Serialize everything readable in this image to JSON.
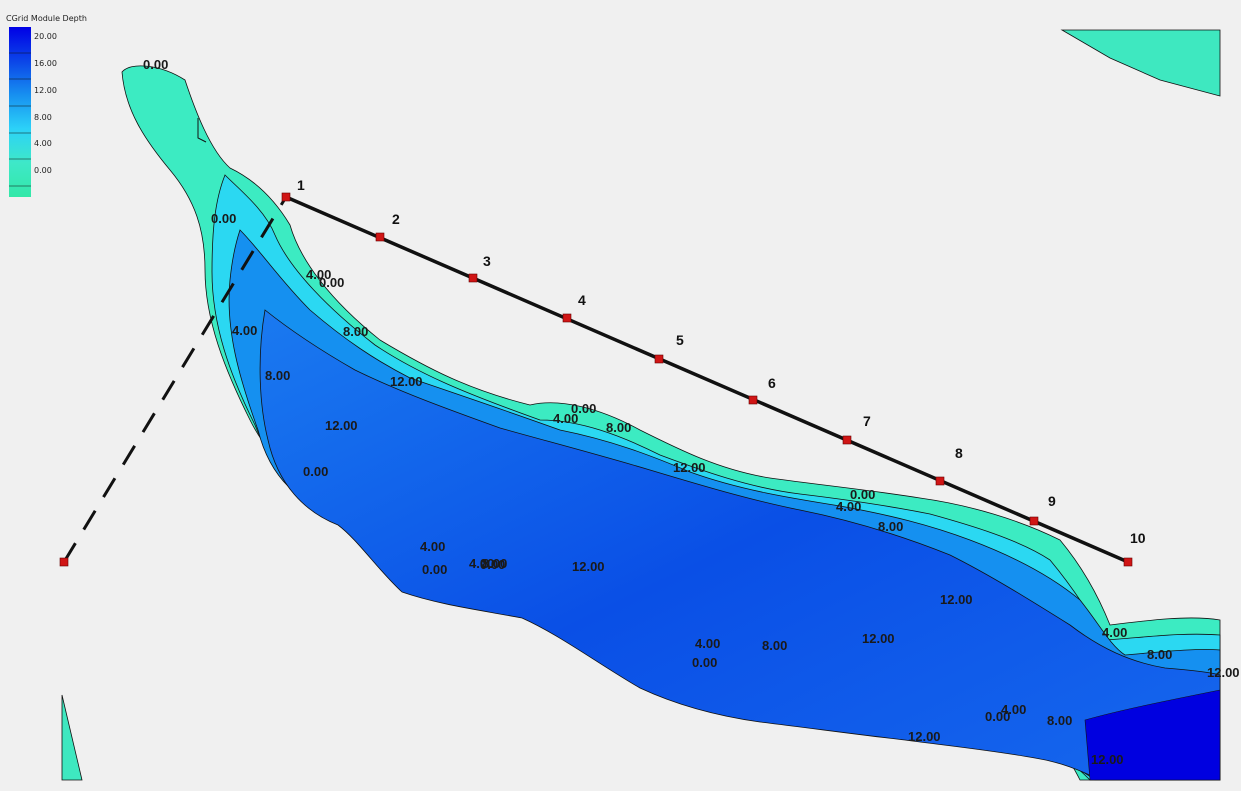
{
  "legend": {
    "title": "CGrid Module Depth",
    "ticks": [
      "20.00",
      "16.00",
      "12.00",
      "8.00",
      "4.00",
      "0.00"
    ],
    "colors": [
      "#0000e6",
      "#0b45e8",
      "#1790f0",
      "#2cd2f8",
      "#3ee8c8",
      "#33e8a8"
    ]
  },
  "contour_labels": {
    "c1": "0.00",
    "c2": "0.00",
    "c3": "4.00",
    "c4": "0.00",
    "c5": "4.00",
    "c6": "8.00",
    "c7": "8.00",
    "c8": "12.00",
    "c9": "12.00",
    "c10": "0.00",
    "c11": "0.00",
    "c12": "4.00",
    "c13": "8.00",
    "c14": "12.00",
    "c15": "0.00",
    "c16": "4.00",
    "c17": "8.00",
    "c18": "12.00",
    "c19": "4.00",
    "c20": "0.00",
    "c21": "4.00",
    "c22": "0.00",
    "c23": "12.00",
    "c24": "8.00",
    "c25": "12.00",
    "c26": "4.00",
    "c27": "8.00",
    "c28": "4.00",
    "c29": "0.00",
    "c30": "12.00",
    "c31": "4.00",
    "c32": "8.00",
    "c33": "12.00",
    "c34": "0.00",
    "c35": "8.00",
    "c36": "12.00"
  },
  "stations": [
    "1",
    "2",
    "3",
    "4",
    "5",
    "6",
    "7",
    "8",
    "9",
    "10"
  ]
}
